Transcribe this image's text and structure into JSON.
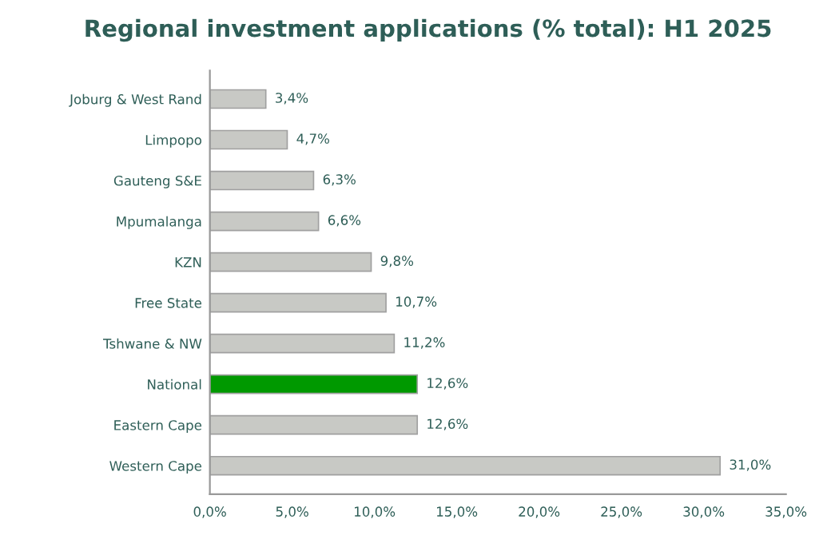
{
  "chart_data": {
    "type": "bar",
    "orientation": "horizontal",
    "title": "Regional investment applications (% total): H1 2025",
    "categories": [
      "Joburg & West Rand",
      "Limpopo",
      "Gauteng S&E",
      "Mpumalanga",
      "KZN",
      "Free State",
      "Tshwane & NW",
      "National",
      "Eastern Cape",
      "Western Cape"
    ],
    "values": [
      3.4,
      4.7,
      6.3,
      6.6,
      9.8,
      10.7,
      11.2,
      12.6,
      12.6,
      31.0
    ],
    "colors": [
      "#c8c9c5",
      "#c8c9c5",
      "#c8c9c5",
      "#c8c9c5",
      "#c8c9c5",
      "#c8c9c5",
      "#c8c9c5",
      "#009900",
      "#c8c9c5",
      "#c8c9c5"
    ],
    "value_labels": [
      "3,4%",
      "4,7%",
      "6,3%",
      "6,6%",
      "9,8%",
      "10,7%",
      "11,2%",
      "12,6%",
      "12,6%",
      "31,0%"
    ],
    "xlim": [
      0,
      35
    ],
    "xticks": [
      {
        "value": 0,
        "label": "0,0%"
      },
      {
        "value": 5,
        "label": "5,0%"
      },
      {
        "value": 10,
        "label": "10,0%"
      },
      {
        "value": 15,
        "label": "15,0%"
      },
      {
        "value": 20,
        "label": "20,0%"
      },
      {
        "value": 25,
        "label": "25,0%"
      },
      {
        "value": 30,
        "label": "30,0%"
      },
      {
        "value": 35,
        "label": "35,0%"
      }
    ],
    "grid": false,
    "legend": false
  }
}
